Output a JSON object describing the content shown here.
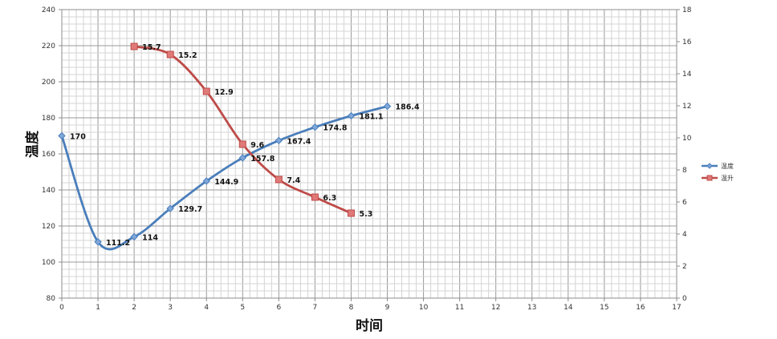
{
  "chart_data": {
    "type": "line",
    "title": "",
    "xlabel": "时间",
    "ylabel": "温度",
    "y2label": "",
    "x_ticks": [
      0,
      1,
      2,
      3,
      4,
      5,
      6,
      7,
      8,
      9,
      10,
      11,
      12,
      13,
      14,
      15,
      16,
      17
    ],
    "xlim": [
      0,
      17
    ],
    "ylim": [
      80,
      240
    ],
    "y_ticks": [
      80,
      100,
      120,
      140,
      160,
      180,
      200,
      220,
      240
    ],
    "y2lim": [
      0,
      18
    ],
    "y2_ticks": [
      0,
      2,
      4,
      6,
      8,
      10,
      12,
      14,
      16,
      18
    ],
    "grid": true,
    "legend_position": "right",
    "series": [
      {
        "name": "温度",
        "axis": "left",
        "color": "#4a7ebb",
        "marker": "diamond",
        "x": [
          0,
          1,
          2,
          3,
          4,
          5,
          6,
          7,
          8,
          9
        ],
        "values": [
          170,
          111.2,
          114,
          129.7,
          144.9,
          157.8,
          167.4,
          174.8,
          181.1,
          186.4
        ],
        "labels": [
          "170",
          "111.2",
          "114",
          "129.7",
          "144.9",
          "157.8",
          "167.4",
          "174.8",
          "181.1",
          "186.4"
        ]
      },
      {
        "name": "温升",
        "axis": "right",
        "color": "#be4b48",
        "marker": "square",
        "x": [
          2,
          3,
          4,
          5,
          6,
          7,
          8
        ],
        "values": [
          15.7,
          15.2,
          12.9,
          9.6,
          7.4,
          6.3,
          5.3
        ],
        "labels": [
          "15.7",
          "15.2",
          "12.9",
          "9.6",
          "7.4",
          "6.3",
          "5.3"
        ]
      }
    ]
  }
}
